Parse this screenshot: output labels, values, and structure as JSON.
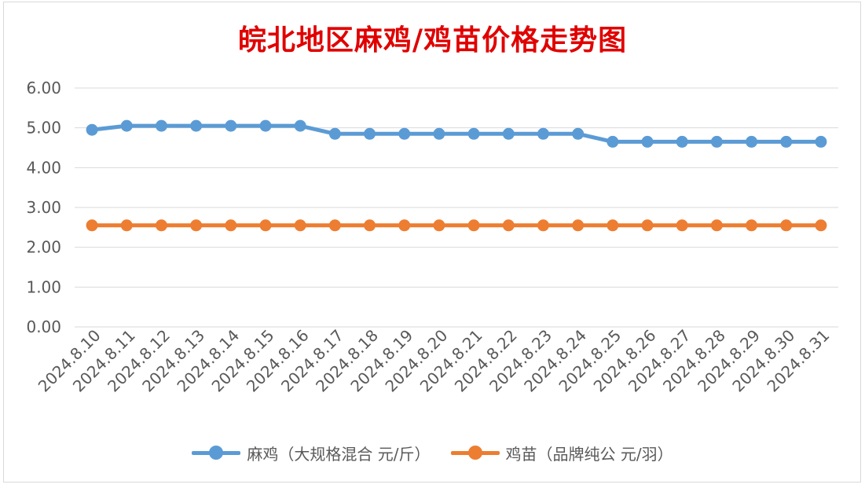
{
  "chart_data": {
    "type": "line",
    "title": "皖北地区麻鸡/鸡苗价格走势图",
    "categories": [
      "2024.8.10",
      "2024.8.11",
      "2024.8.12",
      "2024.8.13",
      "2024.8.14",
      "2024.8.15",
      "2024.8.16",
      "2024.8.17",
      "2024.8.18",
      "2024.8.19",
      "2024.8.20",
      "2024.8.21",
      "2024.8.22",
      "2024.8.23",
      "2024.8.24",
      "2024.8.25",
      "2024.8.26",
      "2024.8.27",
      "2024.8.28",
      "2024.8.29",
      "2024.8.30",
      "2024.8.31"
    ],
    "yticks": [
      "0.00",
      "1.00",
      "2.00",
      "3.00",
      "4.00",
      "5.00",
      "6.00"
    ],
    "ylim": [
      0,
      6
    ],
    "grid": true,
    "legend_position": "bottom",
    "series": [
      {
        "name": "麻鸡（大规格混合 元/斤）",
        "color": "#5b9bd5",
        "values": [
          4.95,
          5.05,
          5.05,
          5.05,
          5.05,
          5.05,
          5.05,
          4.85,
          4.85,
          4.85,
          4.85,
          4.85,
          4.85,
          4.85,
          4.85,
          4.65,
          4.65,
          4.65,
          4.65,
          4.65,
          4.65,
          4.65
        ]
      },
      {
        "name": "鸡苗（品牌纯公 元/羽）",
        "color": "#ed7d31",
        "values": [
          2.55,
          2.55,
          2.55,
          2.55,
          2.55,
          2.55,
          2.55,
          2.55,
          2.55,
          2.55,
          2.55,
          2.55,
          2.55,
          2.55,
          2.55,
          2.55,
          2.55,
          2.55,
          2.55,
          2.55,
          2.55,
          2.55
        ]
      }
    ]
  }
}
